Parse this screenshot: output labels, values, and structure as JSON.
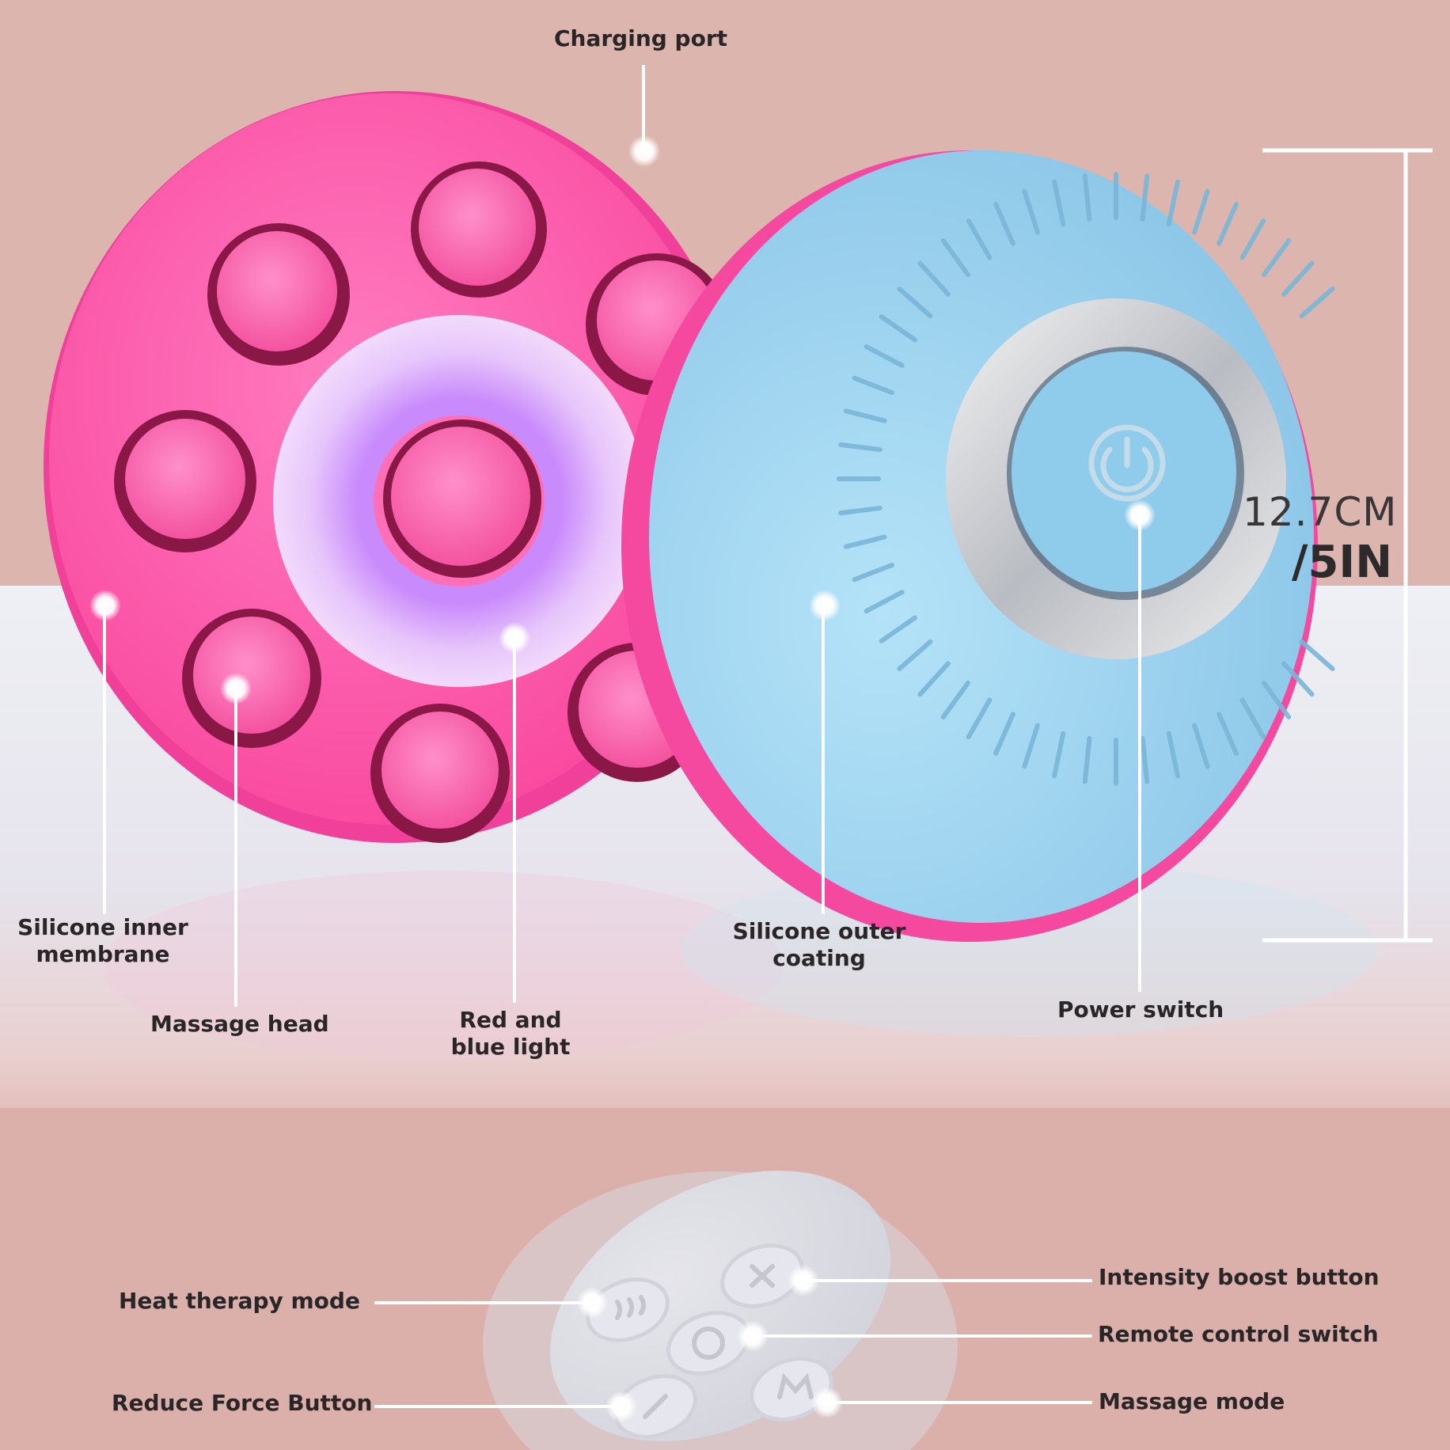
{
  "labels": {
    "charging_port": "Charging port",
    "silicone_inner_membrane": "Silicone inner membrane",
    "massage_head": "Massage head",
    "red_blue_light": "Red and blue light",
    "silicone_outer_coating": "Silicone outer coating",
    "power_switch": "Power switch",
    "heat_therapy_mode": "Heat therapy mode",
    "reduce_force_button": "Reduce Force Button",
    "intensity_boost_button": "Intensity boost button",
    "remote_control_switch": "Remote control switch",
    "massage_mode": "Massage mode"
  },
  "dimension": {
    "cm": "12.7CM",
    "inch": "/5IN"
  },
  "colors": {
    "background_pink": "#dcb6ae",
    "device_pink": "#ff5fae",
    "device_blue": "#9fd3ee",
    "light_ring_purple": "#c9a2ff",
    "remote_white": "#e4e4ea"
  }
}
